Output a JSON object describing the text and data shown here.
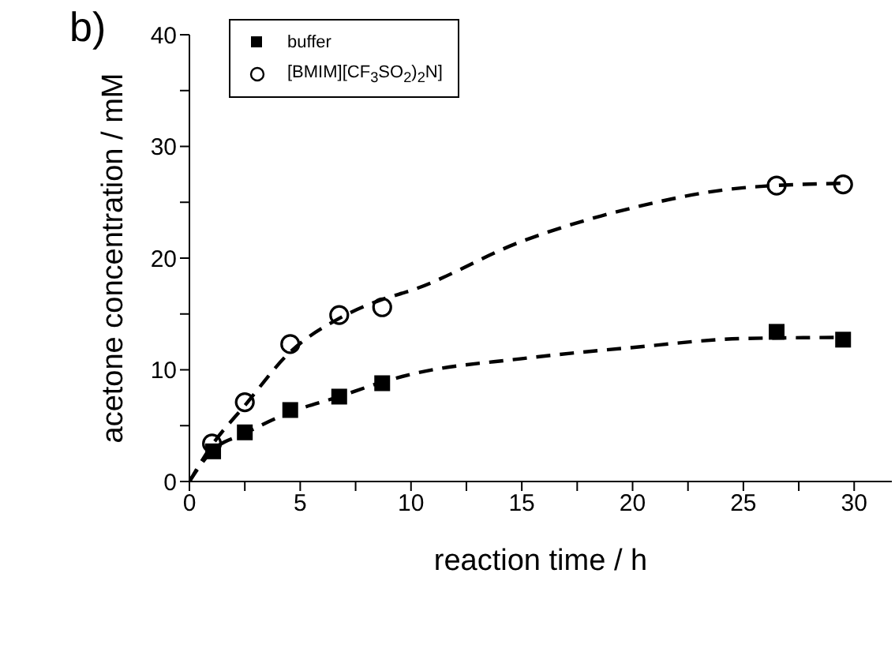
{
  "chart_data": {
    "type": "scatter",
    "title": "b)",
    "xlabel": "reaction time / h",
    "ylabel": "acetone concentration / mM",
    "xlim": [
      0,
      31.7
    ],
    "xticks": [
      0,
      {
        "value": 2.5,
        "label": null
      },
      5,
      {
        "value": 7.5,
        "label": null
      },
      10,
      {
        "value": 12.5,
        "label": null
      },
      15,
      {
        "value": 17.5,
        "label": null
      },
      20,
      {
        "value": 22.5,
        "label": null
      },
      25,
      {
        "value": 27.5,
        "label": null
      },
      30
    ],
    "ylim": [
      0,
      40
    ],
    "yticks": [
      0,
      {
        "value": 5,
        "label": null
      },
      10,
      {
        "value": 15,
        "label": null
      },
      20,
      {
        "value": 25,
        "label": null
      },
      30,
      {
        "value": 35,
        "label": null
      },
      40
    ],
    "grid": false,
    "legend": "top left",
    "series": [
      {
        "name": "buffer",
        "marker": "square",
        "color": "#000000",
        "x": [
          1.07,
          2.5,
          4.55,
          6.76,
          8.7,
          26.5,
          29.5
        ],
        "values": [
          2.7,
          4.4,
          6.4,
          7.6,
          8.8,
          13.4,
          12.7
        ]
      },
      {
        "name": "[BMIM][CF$_{3}$SO$_{2}$)$_{2}$N]",
        "marker": "circle",
        "color": "#000000",
        "x": [
          1.02,
          2.5,
          4.55,
          6.76,
          8.7,
          26.5,
          29.5
        ],
        "values": [
          3.4,
          7.1,
          12.3,
          14.9,
          15.6,
          26.5,
          26.6
        ]
      },
      {
        "type": "line",
        "marker": "none",
        "line_style": "dashed",
        "color": "#000000",
        "x": [
          0,
          1,
          2.5,
          4.55,
          6.76,
          8.7,
          10,
          15,
          20,
          25,
          29.5
        ],
        "values": [
          0,
          2.7,
          4.3,
          6.2,
          7.6,
          8.9,
          9.6,
          11.0,
          12.0,
          12.8,
          12.9
        ]
      },
      {
        "type": "line",
        "marker": "none",
        "line_style": "dashed",
        "color": "#000000",
        "x": [
          0,
          1,
          2.5,
          4.55,
          6.76,
          8.7,
          10,
          15,
          20,
          25,
          29.5
        ],
        "values": [
          0,
          3.2,
          6.8,
          11.6,
          14.6,
          16.3,
          17.1,
          21.5,
          24.5,
          26.3,
          26.7
        ]
      }
    ]
  }
}
